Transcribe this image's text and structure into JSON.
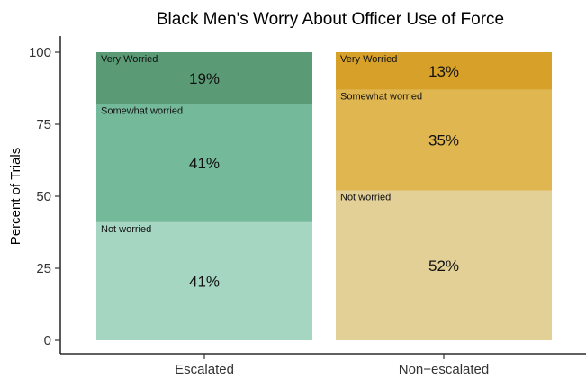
{
  "chart_data": {
    "type": "bar",
    "stacked": true,
    "title": "Black Men's Worry About Officer Use of Force",
    "xlabel": "",
    "ylabel": "Percent of Trials",
    "ylim": [
      0,
      100
    ],
    "yticks": [
      0,
      25,
      50,
      75,
      100
    ],
    "grid": false,
    "legend": "none",
    "categories": [
      "Escalated",
      "Non−escalated"
    ],
    "stack_order": [
      "Not worried",
      "Somewhat worried",
      "Very Worried"
    ],
    "bars": [
      {
        "category": "Escalated",
        "segments": [
          {
            "name": "Not worried",
            "value": 41,
            "label": "41%",
            "color": "#a5d6c2"
          },
          {
            "name": "Somewhat worried",
            "value": 41,
            "label": "41%",
            "color": "#75b99b"
          },
          {
            "name": "Very Worried",
            "value": 19,
            "label": "19%",
            "color": "#5a9b75"
          }
        ]
      },
      {
        "category": "Non−escalated",
        "segments": [
          {
            "name": "Not worried",
            "value": 52,
            "label": "52%",
            "color": "#e3d096"
          },
          {
            "name": "Somewhat worried",
            "value": 35,
            "label": "35%",
            "color": "#dfb650"
          },
          {
            "name": "Very Worried",
            "value": 13,
            "label": "13%",
            "color": "#d6a029"
          }
        ]
      }
    ]
  }
}
